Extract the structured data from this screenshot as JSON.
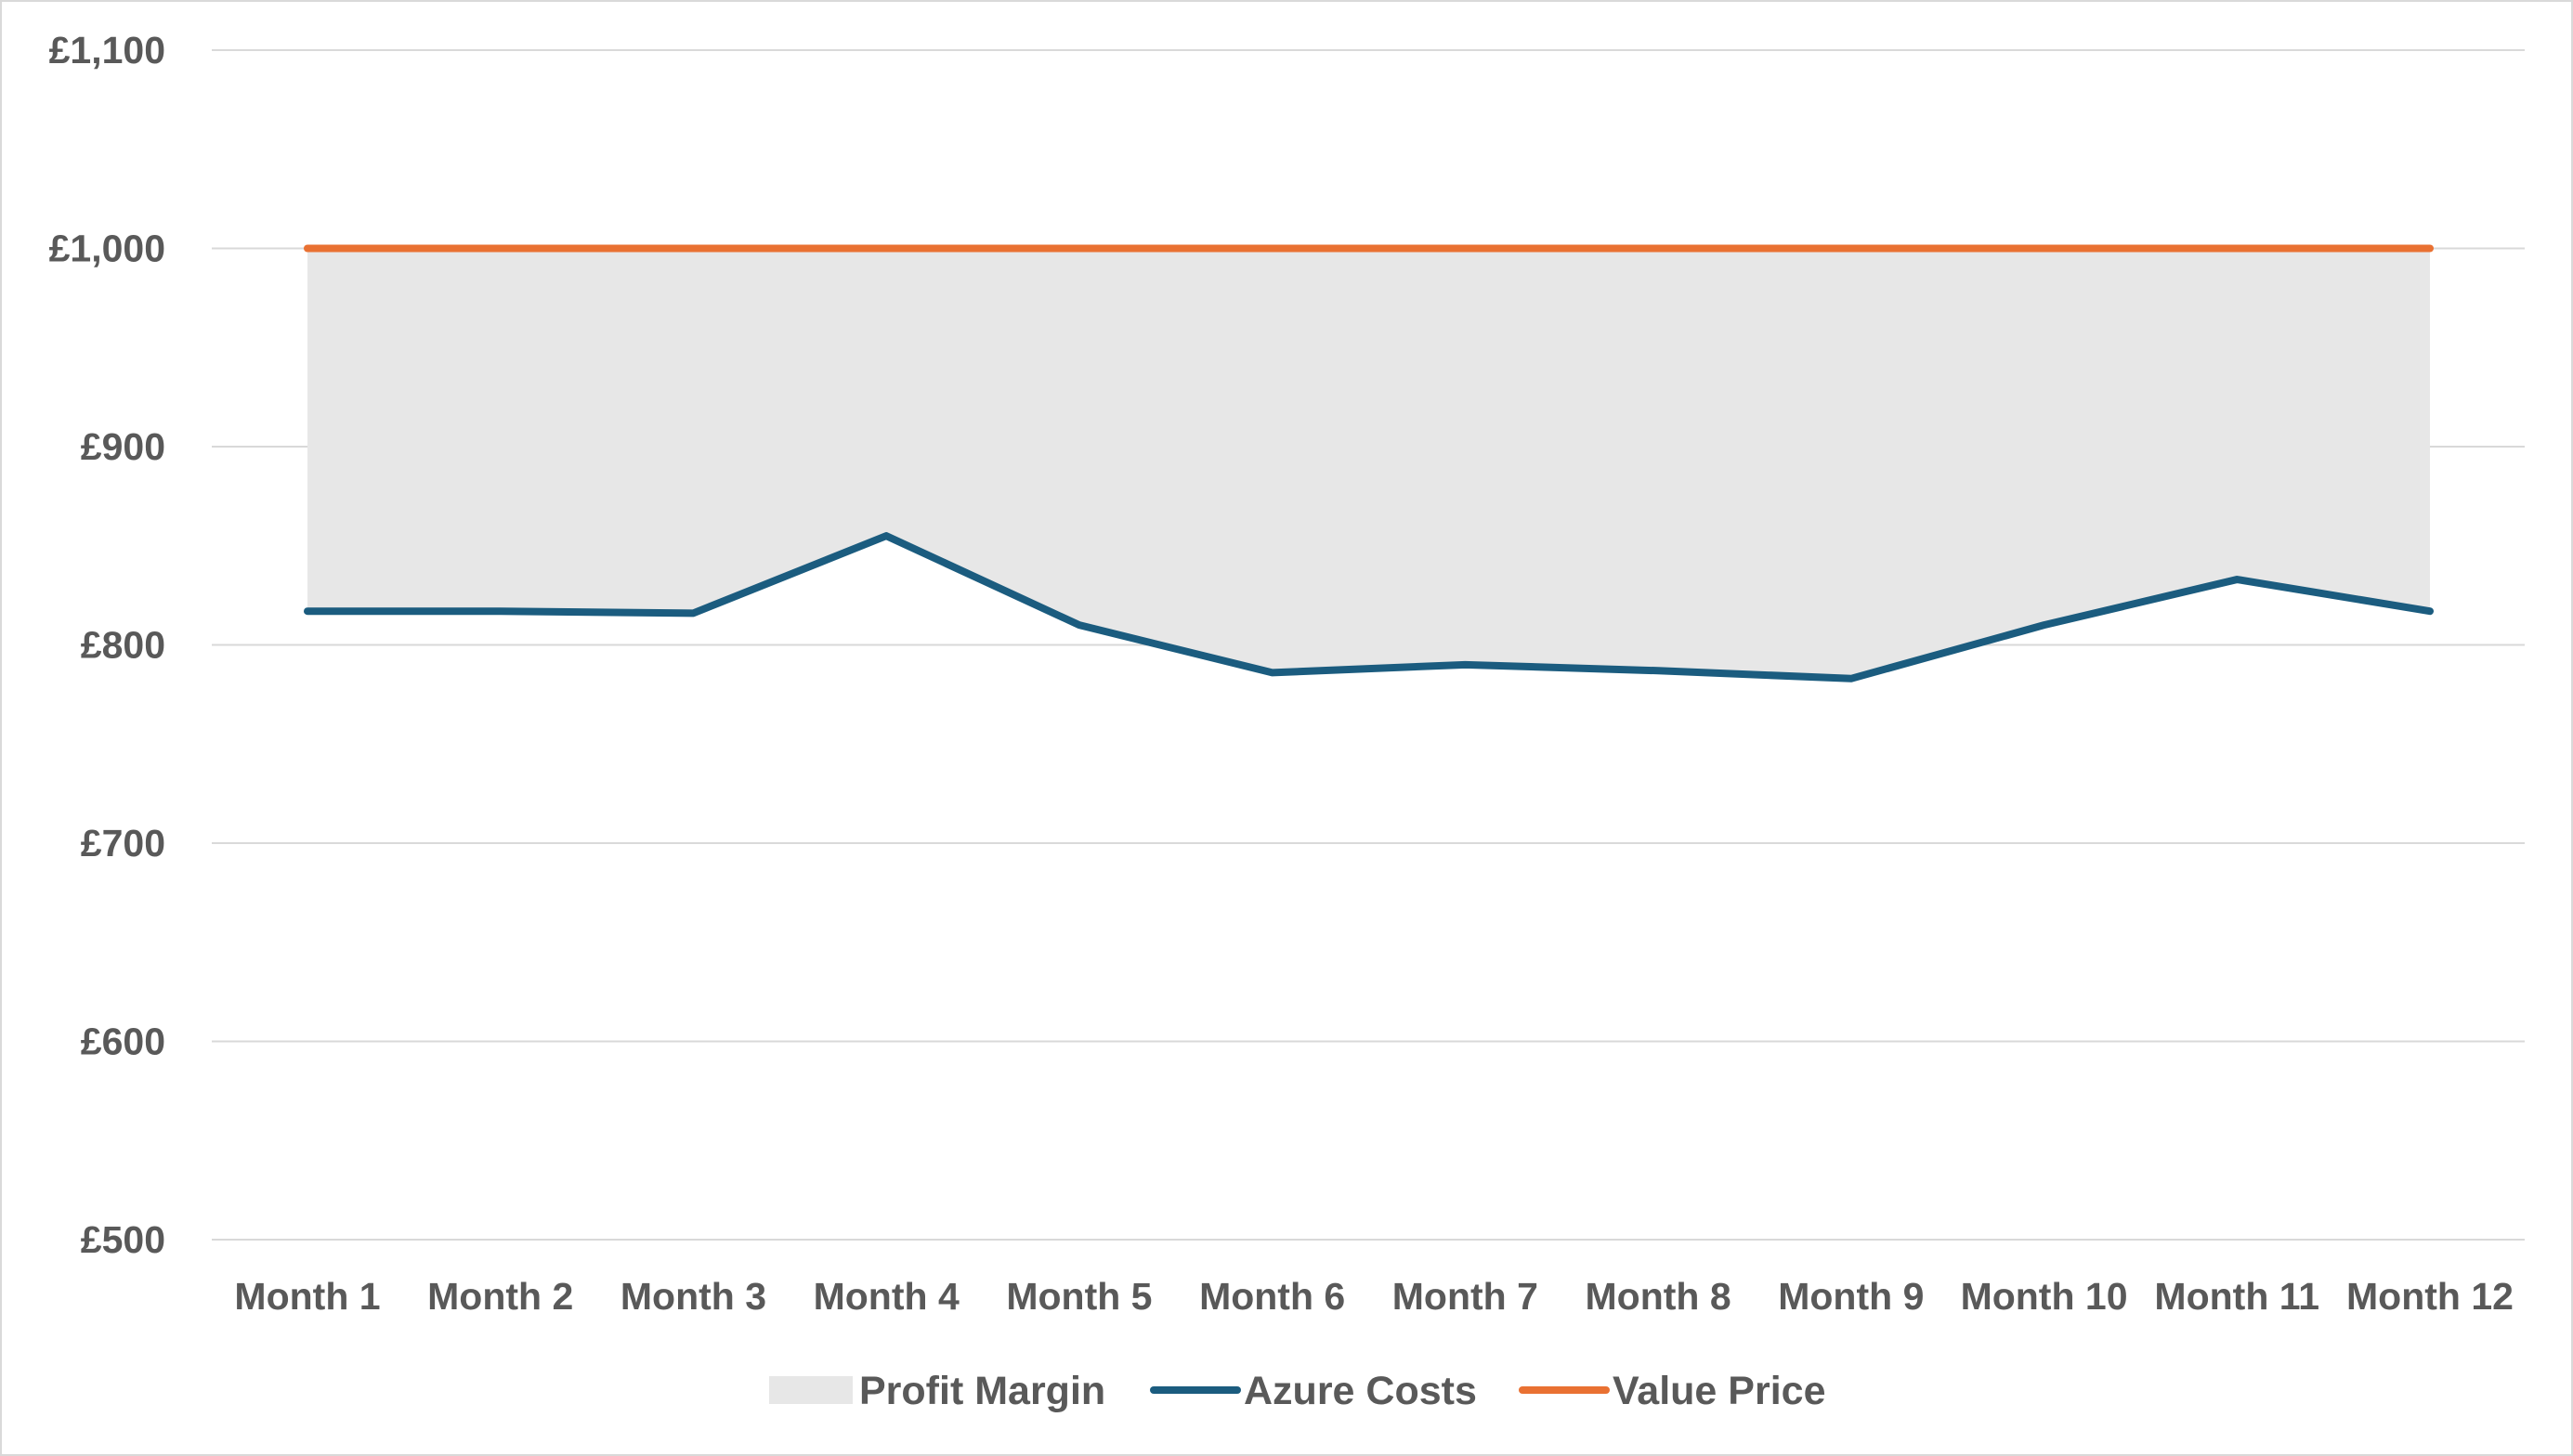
{
  "chart_data": {
    "type": "line",
    "categories": [
      "Month 1",
      "Month 2",
      "Month 3",
      "Month 4",
      "Month 5",
      "Month 6",
      "Month 7",
      "Month 8",
      "Month 9",
      "Month 10",
      "Month 11",
      "Month 12"
    ],
    "series": [
      {
        "name": "Profit Margin",
        "kind": "area-band",
        "from_series": "Azure Costs",
        "to_series": "Value Price",
        "color": "#e7e7e7"
      },
      {
        "name": "Azure Costs",
        "kind": "line",
        "color": "#1b5c7f",
        "values": [
          817,
          817,
          816,
          855,
          810,
          786,
          790,
          787,
          783,
          810,
          833,
          817
        ]
      },
      {
        "name": "Value Price",
        "kind": "line",
        "color": "#e97132",
        "values": [
          1000,
          1000,
          1000,
          1000,
          1000,
          1000,
          1000,
          1000,
          1000,
          1000,
          1000,
          1000
        ]
      }
    ],
    "y_ticks": [
      "£500",
      "£600",
      "£700",
      "£800",
      "£900",
      "£1,000",
      "£1,100"
    ],
    "y_tick_values": [
      500,
      600,
      700,
      800,
      900,
      1000,
      1100
    ],
    "ylim": [
      500,
      1100
    ],
    "title": "",
    "xlabel": "",
    "ylabel": "",
    "grid": "horizontal",
    "legend_position": "bottom",
    "colors": {
      "gridline": "#d9d9d9",
      "text": "#595959",
      "border": "#d9d9d9"
    }
  }
}
